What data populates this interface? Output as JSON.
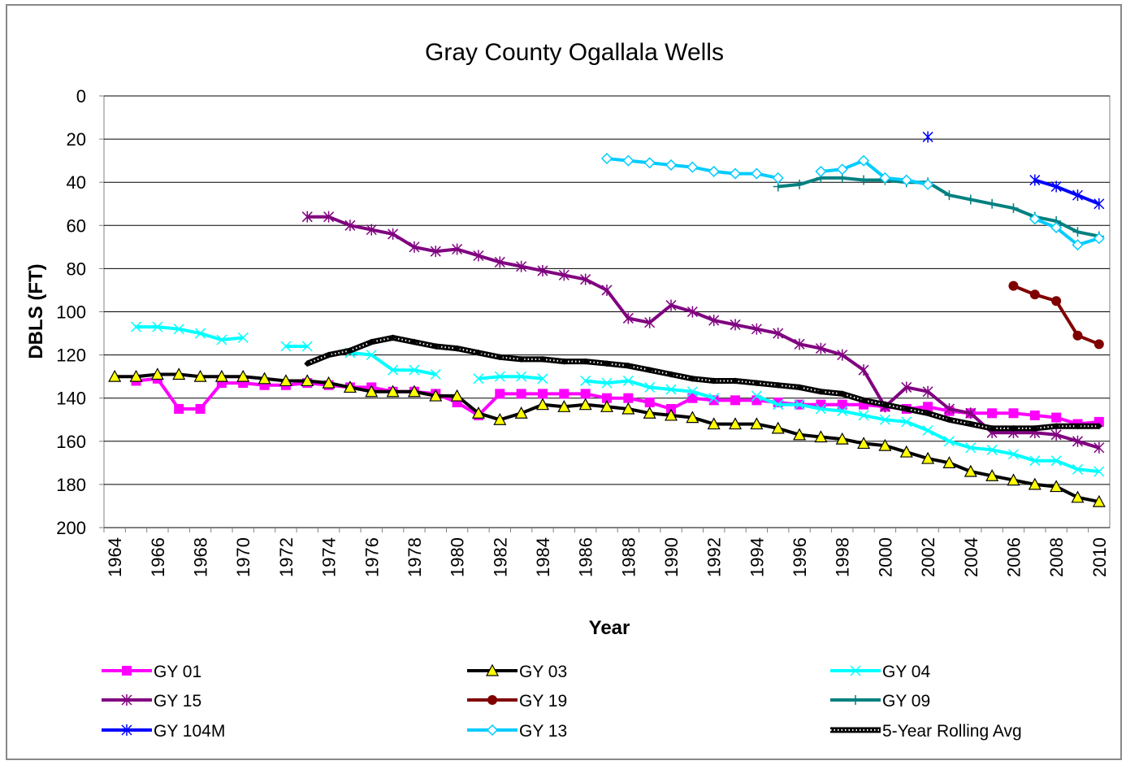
{
  "chart_data": {
    "type": "line",
    "title": "Gray County Ogallala Wells",
    "y_label": "DBLS (FT)",
    "x_label": "Year",
    "y_inverted": true,
    "grid": true,
    "legend": "bottom",
    "ylim": [
      0,
      200
    ],
    "yticks": [
      0,
      20,
      40,
      60,
      80,
      100,
      120,
      140,
      160,
      180,
      200
    ],
    "categories": [
      1964,
      null,
      1966,
      null,
      1968,
      null,
      1970,
      null,
      1972,
      null,
      1974,
      null,
      1976,
      null,
      1978,
      null,
      1980,
      null,
      1982,
      null,
      1984,
      null,
      1986,
      null,
      1988,
      null,
      1990,
      null,
      1992,
      null,
      1994,
      null,
      1996,
      null,
      1998,
      null,
      2000,
      null,
      2002,
      null,
      2004,
      null,
      2006,
      null,
      2008,
      null,
      2010
    ],
    "series": [
      {
        "name": "GY 01",
        "color": "#ff00ff",
        "marker": "square",
        "values": [
          null,
          132,
          131,
          145,
          145,
          133,
          133,
          134,
          134,
          133,
          134,
          135,
          135,
          137,
          137,
          138,
          142,
          148,
          138,
          138,
          138,
          138,
          138,
          140,
          140,
          142,
          145,
          140,
          141,
          141,
          141,
          142,
          143,
          143,
          143,
          143,
          144,
          145,
          144,
          146,
          147,
          147,
          147,
          148,
          149,
          152,
          151
        ]
      },
      {
        "name": "GY 03",
        "color": "#000000",
        "marker": "triangle",
        "values": [
          130,
          130,
          129,
          129,
          130,
          130,
          130,
          131,
          132,
          132,
          133,
          135,
          137,
          137,
          137,
          139,
          139,
          147,
          150,
          147,
          143,
          144,
          143,
          144,
          145,
          147,
          148,
          149,
          152,
          152,
          152,
          154,
          157,
          158,
          159,
          161,
          162,
          165,
          168,
          170,
          174,
          176,
          178,
          180,
          181,
          186,
          188
        ]
      },
      {
        "name": "GY 04",
        "color": "#00ffff",
        "marker": "x",
        "values": [
          null,
          107,
          107,
          108,
          110,
          113,
          112,
          null,
          116,
          116,
          null,
          119,
          120,
          127,
          127,
          129,
          null,
          131,
          130,
          130,
          131,
          null,
          132,
          133,
          132,
          135,
          136,
          137,
          140,
          null,
          139,
          143,
          143,
          145,
          146,
          148,
          150,
          151,
          155,
          160,
          163,
          164,
          166,
          169,
          169,
          173,
          174
        ]
      },
      {
        "name": "GY 15",
        "color": "#800080",
        "marker": "star",
        "values": [
          null,
          null,
          null,
          null,
          null,
          null,
          null,
          null,
          null,
          56,
          56,
          60,
          62,
          64,
          70,
          72,
          71,
          74,
          77,
          79,
          81,
          83,
          85,
          90,
          103,
          105,
          97,
          100,
          104,
          106,
          108,
          110,
          115,
          117,
          120,
          127,
          144,
          135,
          137,
          145,
          147,
          156,
          156,
          156,
          157,
          160,
          163
        ]
      },
      {
        "name": "GY 19",
        "color": "#800000",
        "marker": "circle",
        "values": [
          null,
          null,
          null,
          null,
          null,
          null,
          null,
          null,
          null,
          null,
          null,
          null,
          null,
          null,
          null,
          null,
          null,
          null,
          null,
          null,
          null,
          null,
          null,
          null,
          null,
          null,
          null,
          null,
          null,
          null,
          null,
          null,
          null,
          null,
          null,
          null,
          null,
          null,
          null,
          null,
          null,
          null,
          88,
          92,
          95,
          111,
          115
        ]
      },
      {
        "name": "GY 09",
        "color": "#008080",
        "marker": "plus",
        "values": [
          null,
          null,
          null,
          null,
          null,
          null,
          null,
          null,
          null,
          null,
          null,
          null,
          null,
          null,
          null,
          null,
          null,
          null,
          null,
          null,
          null,
          null,
          null,
          null,
          null,
          null,
          null,
          null,
          null,
          null,
          null,
          42,
          41,
          38,
          38,
          39,
          39,
          40,
          40,
          46,
          48,
          50,
          52,
          56,
          58,
          63,
          65
        ]
      },
      {
        "name": "GY 104M",
        "color": "#0000ff",
        "marker": "star",
        "values": [
          null,
          null,
          null,
          null,
          null,
          null,
          null,
          null,
          null,
          null,
          null,
          null,
          null,
          null,
          null,
          null,
          null,
          null,
          null,
          null,
          null,
          null,
          null,
          null,
          null,
          null,
          null,
          null,
          null,
          null,
          null,
          null,
          null,
          null,
          null,
          null,
          null,
          null,
          19,
          null,
          null,
          null,
          null,
          39,
          42,
          46,
          50
        ]
      },
      {
        "name": "GY 13",
        "color": "#00ccff",
        "marker": "diamond",
        "values": [
          null,
          null,
          null,
          null,
          null,
          null,
          null,
          null,
          null,
          null,
          null,
          null,
          null,
          null,
          null,
          null,
          null,
          null,
          null,
          null,
          null,
          null,
          null,
          29,
          30,
          31,
          32,
          33,
          35,
          36,
          36,
          38,
          null,
          35,
          34,
          30,
          38,
          39,
          41,
          null,
          null,
          null,
          null,
          57,
          61,
          69,
          66
        ]
      },
      {
        "name": "5-Year Rolling Avg",
        "color": "#000000",
        "marker": "dotted",
        "values": [
          null,
          null,
          null,
          null,
          null,
          null,
          null,
          null,
          null,
          124,
          120,
          118,
          114,
          112,
          114,
          116,
          117,
          119,
          121,
          122,
          122,
          123,
          123,
          124,
          125,
          127,
          129,
          131,
          132,
          132,
          133,
          134,
          135,
          137,
          138,
          141,
          143,
          145,
          147,
          150,
          152,
          154,
          154,
          154,
          153,
          153,
          153
        ]
      }
    ]
  }
}
